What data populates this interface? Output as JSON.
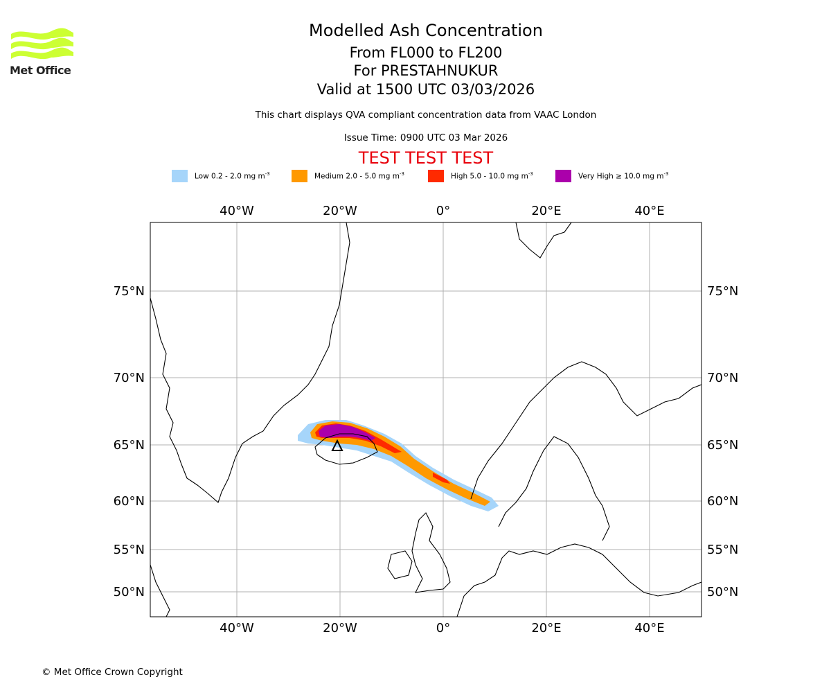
{
  "logo": {
    "text": "Met Office",
    "brand_color": "#ccff33"
  },
  "header": {
    "title": "Modelled Ash Concentration",
    "levels": "From FL000 to FL200",
    "volcano": "For PRESTAHNUKUR",
    "valid": "Valid at 1500 UTC 03/03/2026",
    "compliance": "This chart displays QVA compliant concentration data from VAAC London",
    "issue": "Issue Time: 0900 UTC 03 Mar 2026",
    "test_banner": "TEST TEST TEST"
  },
  "legend": [
    {
      "label": "Low 0.2 - 2.0 mg m",
      "unit_exp": "-3",
      "color": "#a6d5fa"
    },
    {
      "label": "Medium 2.0 - 5.0 mg m",
      "unit_exp": "-3",
      "color": "#ff9900"
    },
    {
      "label": "High 5.0 - 10.0 mg m",
      "unit_exp": "-3",
      "color": "#ff2a00"
    },
    {
      "label": "Very High ≥ 10.0 mg m",
      "unit_exp": "-3",
      "color": "#ab00ab"
    }
  ],
  "map": {
    "lon_labels": [
      "40°W",
      "20°W",
      "0°",
      "20°E",
      "40°E"
    ],
    "lat_labels": [
      "75°N",
      "70°N",
      "65°N",
      "60°N",
      "55°N",
      "50°N"
    ],
    "source_marker": "volcano-source"
  },
  "footer": {
    "copyright": "© Met Office Crown Copyright"
  }
}
